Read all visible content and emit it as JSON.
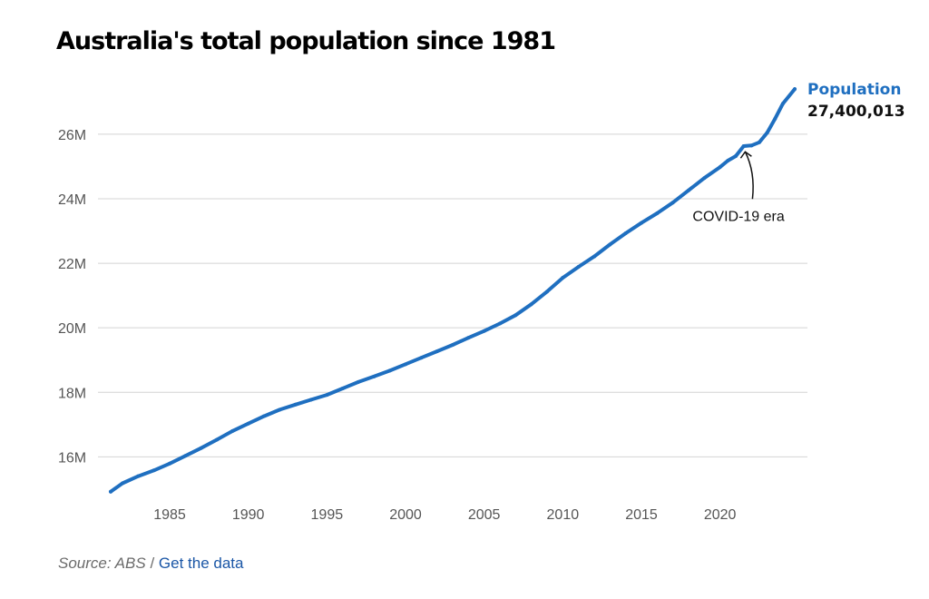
{
  "chart_data": {
    "type": "line",
    "title": "Australia's total population since 1981",
    "xlabel": "",
    "ylabel": "",
    "xlim": [
      1981.25,
      2024.75
    ],
    "ylim": [
      14.8,
      27.6
    ],
    "x_ticks": [
      1985,
      1990,
      1995,
      2000,
      2005,
      2010,
      2015,
      2020
    ],
    "x_tick_labels": [
      "1985",
      "1990",
      "1995",
      "2000",
      "2005",
      "2010",
      "2015",
      "2020"
    ],
    "y_ticks": [
      16,
      18,
      20,
      22,
      24,
      26
    ],
    "y_tick_labels": [
      "16M",
      "18M",
      "20M",
      "22M",
      "24M",
      "26M"
    ],
    "grid": "horizontal",
    "line_color": "#1f6fc0",
    "series": [
      {
        "name": "Population",
        "end_value_label": "27,400,013",
        "x": [
          1981.25,
          1982,
          1983,
          1984,
          1985,
          1986,
          1987,
          1988,
          1989,
          1990,
          1991,
          1992,
          1993,
          1994,
          1995,
          1996,
          1997,
          1998,
          1999,
          2000,
          2001,
          2002,
          2003,
          2004,
          2005,
          2006,
          2007,
          2008,
          2009,
          2010,
          2011,
          2012,
          2013,
          2014,
          2015,
          2016,
          2017,
          2018,
          2019,
          2020,
          2020.5,
          2021,
          2021.5,
          2022,
          2022.5,
          2023,
          2023.5,
          2024,
          2024.75
        ],
        "y": [
          14.92,
          15.18,
          15.4,
          15.58,
          15.79,
          16.03,
          16.27,
          16.53,
          16.8,
          17.03,
          17.26,
          17.46,
          17.62,
          17.77,
          17.92,
          18.12,
          18.32,
          18.49,
          18.67,
          18.87,
          19.07,
          19.27,
          19.47,
          19.69,
          19.9,
          20.13,
          20.39,
          20.73,
          21.12,
          21.55,
          21.89,
          22.21,
          22.58,
          22.93,
          23.25,
          23.55,
          23.88,
          24.26,
          24.64,
          24.98,
          25.18,
          25.32,
          25.63,
          25.65,
          25.75,
          26.05,
          26.48,
          26.95,
          27.4
        ]
      }
    ],
    "annotations": [
      {
        "text": "COVID-19 era",
        "x": 2021.6,
        "y": 25.68
      }
    ]
  },
  "footer": {
    "source_text": "Source: ABS",
    "separator": "/",
    "link_text": "Get the data"
  }
}
